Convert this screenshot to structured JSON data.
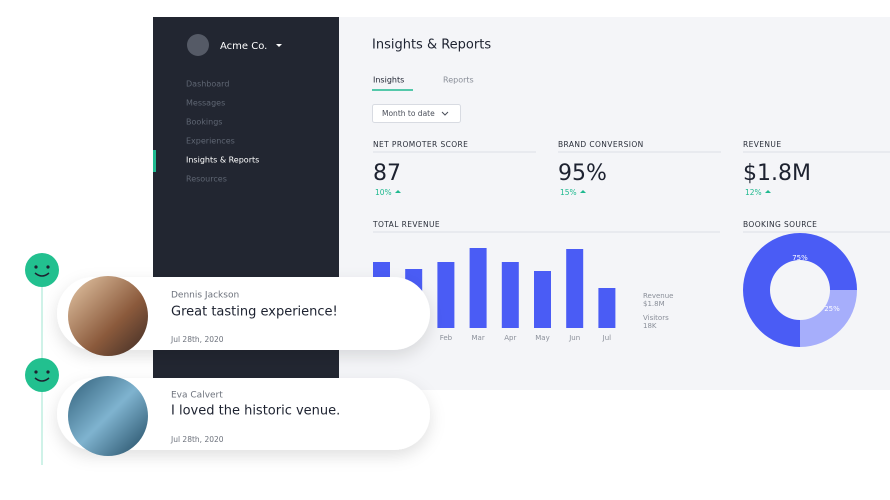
{
  "sidebar": {
    "company": "Acme Co.",
    "nav": [
      "Dashboard",
      "Messages",
      "Bookings",
      "Experiences",
      "Insights & Reports",
      "Resources"
    ]
  },
  "header": {
    "title": "Insights & Reports"
  },
  "tabs": [
    "Insights",
    "Reports"
  ],
  "filter": "Month to date",
  "metrics": [
    {
      "label": "NET PROMOTER SCORE",
      "value": "87",
      "change": "10%"
    },
    {
      "label": "BRAND CONVERSION",
      "value": "95%",
      "change": "15%"
    },
    {
      "label": "REVENUE",
      "value": "$1.8M",
      "change": "12%"
    }
  ],
  "revenue_chart": {
    "type": "bar",
    "title": "TOTAL REVENUE",
    "categories": [
      null,
      null,
      "Feb",
      "Mar",
      "Apr",
      "May",
      "Jun",
      "Jul"
    ],
    "values": [
      66,
      59,
      66,
      80,
      66,
      57,
      79,
      40
    ],
    "color": "#4a5cf5",
    "legend": [
      {
        "name": "Revenue",
        "value": "$1.8M"
      },
      {
        "name": "Visitors",
        "value": "18K"
      }
    ]
  },
  "booking_chart": {
    "type": "pie",
    "title": "BOOKING SOURCE",
    "values": [
      75,
      25
    ],
    "value_labels": [
      "75%",
      "25%"
    ],
    "colors": [
      "#4a5cf5",
      "#a6aefb"
    ]
  },
  "reviews": [
    {
      "name": "Dennis Jackson",
      "quote": "Great tasting experience!",
      "date": "Jul 28th, 2020"
    },
    {
      "name": "Eva Calvert",
      "quote": "I loved the historic venue.",
      "date": "Jul 28th, 2020"
    }
  ]
}
